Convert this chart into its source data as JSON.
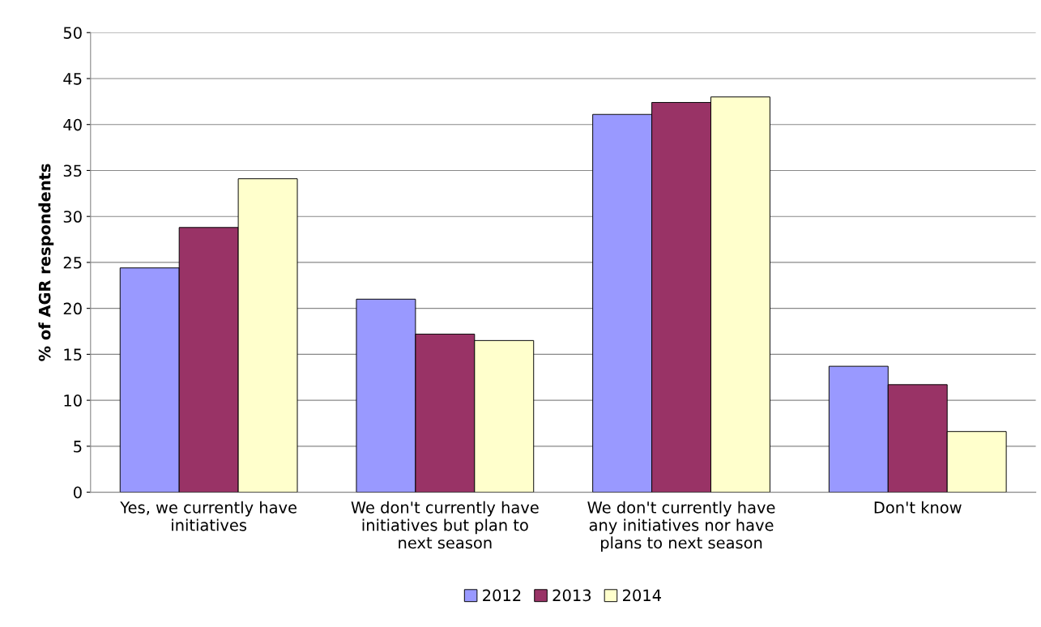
{
  "chart_data": {
    "type": "bar",
    "ylabel": "% of AGR respondents",
    "categories": [
      "Yes, we currently have initiatives",
      "We don't currently have initiatives but plan to next season",
      "We don't currently have any initiatives nor have plans to next season",
      "Don't know"
    ],
    "series": [
      {
        "name": "2012",
        "color": "#9999ff",
        "values": [
          24.4,
          21.0,
          41.1,
          13.7
        ]
      },
      {
        "name": "2013",
        "color": "#993366",
        "values": [
          28.8,
          17.2,
          42.4,
          11.7
        ]
      },
      {
        "name": "2014",
        "color": "#ffffcc",
        "values": [
          34.1,
          16.5,
          43.0,
          6.6
        ]
      }
    ],
    "ylim": [
      0,
      50
    ],
    "yticks": [
      0,
      5,
      10,
      15,
      20,
      25,
      30,
      35,
      40,
      45,
      50
    ],
    "grid": "y",
    "legend": "bottom"
  }
}
